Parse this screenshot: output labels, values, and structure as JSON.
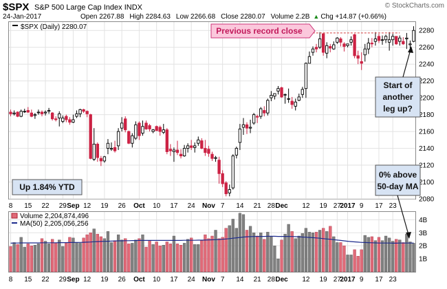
{
  "header": {
    "symbol": "$SPX",
    "name": "S&P 500 Large Cap Index",
    "exchange": "INDX",
    "watermark": "© StockCharts.com",
    "date": "24-Jan-2017",
    "open": "Open 2267.88",
    "high": "High 2284.63",
    "low": "Low 2266.68",
    "close": "Close 2280.07",
    "volume": "Volume 2.2B",
    "chg": "Chg +14.87 (+0.66%)",
    "chg_arrow": "▲"
  },
  "price_panel": {
    "legend": "$SPX (Daily) 2280.07",
    "y_ticks": [
      2080,
      2100,
      2120,
      2140,
      2160,
      2180,
      2200,
      2220,
      2240,
      2260,
      2280
    ],
    "ylim": [
      2080,
      2290
    ]
  },
  "volume_panel": {
    "legend_volume": "Volume 2,204,874,496",
    "legend_ma": "MA(50) 2,205,056,256",
    "y_ticks": [
      {
        "label": "1B",
        "value": 1
      },
      {
        "label": "2B",
        "value": 2
      },
      {
        "label": "3B",
        "value": 3
      },
      {
        "label": "4B",
        "value": 4
      }
    ],
    "ylim": [
      0,
      4.6
    ]
  },
  "x_axis": {
    "labels": [
      {
        "idx": 0,
        "text": "8",
        "bold": false
      },
      {
        "idx": 5,
        "text": "15",
        "bold": false
      },
      {
        "idx": 10,
        "text": "22",
        "bold": false
      },
      {
        "idx": 15,
        "text": "29",
        "bold": false
      },
      {
        "idx": 18,
        "text": "Sep",
        "bold": true
      },
      {
        "idx": 22,
        "text": "12",
        "bold": false
      },
      {
        "idx": 27,
        "text": "19",
        "bold": false
      },
      {
        "idx": 32,
        "text": "26",
        "bold": false
      },
      {
        "idx": 37,
        "text": "Oct",
        "bold": true
      },
      {
        "idx": 42,
        "text": "10",
        "bold": false
      },
      {
        "idx": 47,
        "text": "17",
        "bold": false
      },
      {
        "idx": 52,
        "text": "24",
        "bold": false
      },
      {
        "idx": 57,
        "text": "Nov",
        "bold": true
      },
      {
        "idx": 61,
        "text": "7",
        "bold": false
      },
      {
        "idx": 66,
        "text": "14",
        "bold": false
      },
      {
        "idx": 71,
        "text": "21",
        "bold": false
      },
      {
        "idx": 75,
        "text": "28",
        "bold": false
      },
      {
        "idx": 78,
        "text": "Dec",
        "bold": true
      },
      {
        "idx": 85,
        "text": "12",
        "bold": false
      },
      {
        "idx": 90,
        "text": "19",
        "bold": false
      },
      {
        "idx": 94,
        "text": "27",
        "bold": false
      },
      {
        "idx": 97,
        "text": "2017",
        "bold": true
      },
      {
        "idx": 101,
        "text": "9",
        "bold": false
      },
      {
        "idx": 106,
        "text": "17",
        "bold": false
      },
      {
        "idx": 110,
        "text": "23",
        "bold": false
      }
    ]
  },
  "annotations": {
    "record_label": "Previous record close",
    "record_level": 2277,
    "question_lines": [
      "Start of",
      "another",
      "leg up?"
    ],
    "ma_lines": [
      "0% above",
      "50-day MA"
    ],
    "ytd": "Up 1.84% YTD"
  },
  "colors": {
    "up": "#000000",
    "down": "#cc2244",
    "volume_up": "#808080",
    "volume_down": "#e06a78",
    "ma_line": "#1c2a8c",
    "callout_pink": "#fbc8dc",
    "callout_border": "#cc3377",
    "callout_text": "#c1185a",
    "callout_blue": "#d7e3f3",
    "grid": "#e2e2e2"
  },
  "chart_data": [
    {
      "type": "candlestick",
      "series": "$SPX (Daily)",
      "x": [
        "2016-08-08",
        "2016-08-09",
        "2016-08-10",
        "2016-08-11",
        "2016-08-12",
        "2016-08-15",
        "2016-08-16",
        "2016-08-17",
        "2016-08-18",
        "2016-08-19",
        "2016-08-22",
        "2016-08-23",
        "2016-08-24",
        "2016-08-25",
        "2016-08-26",
        "2016-08-29",
        "2016-08-30",
        "2016-08-31",
        "2016-09-01",
        "2016-09-02",
        "2016-09-06",
        "2016-09-07",
        "2016-09-08",
        "2016-09-09",
        "2016-09-12",
        "2016-09-13",
        "2016-09-14",
        "2016-09-15",
        "2016-09-16",
        "2016-09-19",
        "2016-09-20",
        "2016-09-21",
        "2016-09-22",
        "2016-09-23",
        "2016-09-26",
        "2016-09-27",
        "2016-09-28",
        "2016-09-29",
        "2016-09-30",
        "2016-10-03",
        "2016-10-04",
        "2016-10-05",
        "2016-10-06",
        "2016-10-07",
        "2016-10-10",
        "2016-10-11",
        "2016-10-12",
        "2016-10-13",
        "2016-10-14",
        "2016-10-17",
        "2016-10-18",
        "2016-10-19",
        "2016-10-20",
        "2016-10-21",
        "2016-10-24",
        "2016-10-25",
        "2016-10-26",
        "2016-10-27",
        "2016-10-28",
        "2016-10-31",
        "2016-11-01",
        "2016-11-02",
        "2016-11-03",
        "2016-11-04",
        "2016-11-07",
        "2016-11-08",
        "2016-11-09",
        "2016-11-10",
        "2016-11-11",
        "2016-11-14",
        "2016-11-15",
        "2016-11-16",
        "2016-11-17",
        "2016-11-18",
        "2016-11-21",
        "2016-11-22",
        "2016-11-23",
        "2016-11-25",
        "2016-11-28",
        "2016-11-29",
        "2016-11-30",
        "2016-12-01",
        "2016-12-02",
        "2016-12-05",
        "2016-12-06",
        "2016-12-07",
        "2016-12-08",
        "2016-12-09",
        "2016-12-12",
        "2016-12-13",
        "2016-12-14",
        "2016-12-15",
        "2016-12-16",
        "2016-12-19",
        "2016-12-20",
        "2016-12-21",
        "2016-12-22",
        "2016-12-23",
        "2016-12-27",
        "2016-12-28",
        "2016-12-29",
        "2016-12-30",
        "2017-01-03",
        "2017-01-04",
        "2017-01-05",
        "2017-01-06",
        "2017-01-09",
        "2017-01-10",
        "2017-01-11",
        "2017-01-12",
        "2017-01-13",
        "2017-01-17",
        "2017-01-18",
        "2017-01-19",
        "2017-01-20",
        "2017-01-23",
        "2017-01-24"
      ],
      "open": [
        2183,
        2181,
        2183,
        2178,
        2184,
        2185,
        2182,
        2179,
        2183,
        2183,
        2182,
        2184,
        2182,
        2175,
        2176,
        2172,
        2178,
        2174,
        2171,
        2178,
        2181,
        2186,
        2184,
        2180,
        2127,
        2145,
        2128,
        2125,
        2140,
        2139,
        2141,
        2143,
        2164,
        2175,
        2160,
        2146,
        2152,
        2170,
        2158,
        2170,
        2167,
        2160,
        2166,
        2165,
        2159,
        2162,
        2139,
        2136,
        2138,
        2133,
        2131,
        2140,
        2143,
        2141,
        2146,
        2149,
        2140,
        2139,
        2133,
        2128,
        2126,
        2110,
        2099,
        2087,
        2093,
        2132,
        2147,
        2165,
        2168,
        2164,
        2170,
        2178,
        2178,
        2185,
        2182,
        2200,
        2202,
        2208,
        2212,
        2204,
        2199,
        2196,
        2190,
        2197,
        2204,
        2211,
        2241,
        2254,
        2260,
        2260,
        2276,
        2253,
        2261,
        2258,
        2266,
        2270,
        2264,
        2262,
        2266,
        2275,
        2250,
        2243,
        2251,
        2258,
        2265,
        2267,
        2273,
        2269,
        2269,
        2266,
        2269,
        2273,
        2267,
        2267,
        2270,
        2263,
        2267
      ],
      "high": [
        2186,
        2185,
        2184,
        2186,
        2187,
        2189,
        2186,
        2182,
        2186,
        2185,
        2185,
        2188,
        2183,
        2178,
        2184,
        2179,
        2180,
        2177,
        2180,
        2185,
        2187,
        2187,
        2185,
        2181,
        2164,
        2147,
        2131,
        2131,
        2151,
        2147,
        2149,
        2164,
        2177,
        2178,
        2161,
        2158,
        2172,
        2172,
        2173,
        2173,
        2169,
        2163,
        2167,
        2167,
        2169,
        2164,
        2145,
        2141,
        2149,
        2139,
        2144,
        2146,
        2150,
        2147,
        2154,
        2152,
        2150,
        2143,
        2136,
        2131,
        2130,
        2114,
        2101,
        2097,
        2133,
        2142,
        2169,
        2176,
        2171,
        2174,
        2182,
        2180,
        2189,
        2190,
        2199,
        2208,
        2205,
        2214,
        2213,
        2205,
        2211,
        2201,
        2199,
        2205,
        2213,
        2242,
        2255,
        2261,
        2264,
        2278,
        2277,
        2266,
        2264,
        2267,
        2272,
        2272,
        2266,
        2264,
        2273,
        2276,
        2256,
        2254,
        2264,
        2271,
        2271,
        2278,
        2276,
        2274,
        2275,
        2278,
        2276,
        2273,
        2274,
        2272,
        2277,
        2268,
        2285
      ],
      "low": [
        2178,
        2179,
        2177,
        2177,
        2182,
        2182,
        2177,
        2175,
        2180,
        2178,
        2179,
        2181,
        2173,
        2172,
        2166,
        2170,
        2171,
        2168,
        2170,
        2176,
        2177,
        2182,
        2177,
        2127,
        2125,
        2124,
        2119,
        2123,
        2133,
        2137,
        2135,
        2138,
        2160,
        2159,
        2145,
        2141,
        2150,
        2150,
        2155,
        2162,
        2160,
        2158,
        2161,
        2155,
        2157,
        2133,
        2131,
        2124,
        2132,
        2128,
        2130,
        2135,
        2138,
        2135,
        2143,
        2139,
        2131,
        2130,
        2125,
        2124,
        2098,
        2094,
        2083,
        2083,
        2091,
        2128,
        2138,
        2156,
        2157,
        2158,
        2168,
        2170,
        2175,
        2178,
        2179,
        2196,
        2198,
        2204,
        2200,
        2193,
        2194,
        2187,
        2185,
        2196,
        2200,
        2200,
        2241,
        2250,
        2254,
        2258,
        2250,
        2247,
        2254,
        2257,
        2264,
        2261,
        2255,
        2260,
        2262,
        2247,
        2240,
        2233,
        2243,
        2252,
        2260,
        2262,
        2265,
        2263,
        2265,
        2256,
        2262,
        2263,
        2262,
        2263,
        2258,
        2257,
        2266
      ],
      "close": [
        2181,
        2182,
        2178,
        2184,
        2184,
        2183,
        2178,
        2180,
        2183,
        2181,
        2183,
        2185,
        2175,
        2174,
        2181,
        2176,
        2174,
        2171,
        2174,
        2181,
        2186,
        2184,
        2181,
        2128,
        2145,
        2129,
        2125,
        2130,
        2146,
        2140,
        2137,
        2160,
        2170,
        2162,
        2146,
        2155,
        2168,
        2155,
        2166,
        2163,
        2163,
        2162,
        2161,
        2160,
        2162,
        2136,
        2137,
        2138,
        2135,
        2131,
        2140,
        2143,
        2141,
        2143,
        2150,
        2140,
        2135,
        2134,
        2128,
        2129,
        2110,
        2098,
        2086,
        2091,
        2131,
        2140,
        2163,
        2168,
        2164,
        2165,
        2180,
        2177,
        2187,
        2182,
        2197,
        2203,
        2205,
        2211,
        2201,
        2204,
        2199,
        2192,
        2195,
        2201,
        2210,
        2241,
        2249,
        2258,
        2258,
        2270,
        2254,
        2262,
        2259,
        2263,
        2271,
        2266,
        2261,
        2264,
        2269,
        2250,
        2247,
        2241,
        2258,
        2265,
        2264,
        2270,
        2268,
        2269,
        2273,
        2269,
        2273,
        2264,
        2271,
        2264,
        2271,
        2264,
        2280
      ]
    },
    {
      "type": "bar",
      "series": "Volume",
      "unit": "billions of shares",
      "x": "same dates as $SPX (Daily)",
      "values": [
        1.95,
        2.25,
        2.1,
        2.65,
        1.9,
        2.15,
        2.0,
        2.05,
        2.15,
        2.55,
        2.35,
        2.15,
        2.5,
        2.2,
        2.45,
        1.95,
        2.25,
        2.65,
        2.6,
        2.25,
        2.2,
        2.6,
        2.85,
        3.0,
        3.3,
        2.9,
        2.7,
        2.55,
        3.1,
        2.25,
        2.4,
        2.85,
        2.45,
        2.55,
        2.15,
        2.2,
        2.45,
        2.55,
        2.85,
        1.9,
        2.4,
        2.1,
        2.3,
        2.0,
        2.05,
        2.3,
        2.15,
        2.75,
        2.15,
        2.05,
        2.2,
        2.5,
        2.6,
        2.1,
        2.1,
        2.4,
        2.85,
        2.55,
        2.75,
        3.2,
        2.55,
        2.65,
        3.35,
        3.55,
        4.05,
        3.35,
        4.5,
        4.4,
        3.2,
        3.5,
        3.0,
        2.75,
        3.0,
        2.5,
        3.05,
        2.7,
        2.0,
        1.0,
        2.45,
        2.9,
        3.65,
        3.1,
        2.55,
        2.75,
        2.95,
        3.35,
        3.05,
        3.0,
        3.05,
        3.2,
        3.35,
        3.1,
        3.5,
        2.7,
        2.25,
        2.25,
        2.0,
        1.3,
        1.3,
        1.7,
        1.2,
        1.7,
        2.8,
        2.65,
        2.7,
        2.4,
        2.65,
        2.4,
        2.75,
        2.6,
        2.35,
        2.5,
        2.45,
        2.25,
        2.9,
        2.3,
        2.2
      ],
      "ma50": [
        2.2,
        2.21,
        2.21,
        2.22,
        2.22,
        2.22,
        2.22,
        2.22,
        2.22,
        2.23,
        2.23,
        2.23,
        2.23,
        2.23,
        2.24,
        2.24,
        2.24,
        2.25,
        2.25,
        2.26,
        2.26,
        2.27,
        2.28,
        2.29,
        2.31,
        2.32,
        2.33,
        2.34,
        2.35,
        2.36,
        2.37,
        2.38,
        2.38,
        2.39,
        2.39,
        2.4,
        2.4,
        2.41,
        2.41,
        2.41,
        2.41,
        2.41,
        2.41,
        2.41,
        2.41,
        2.41,
        2.41,
        2.41,
        2.41,
        2.41,
        2.42,
        2.42,
        2.42,
        2.42,
        2.43,
        2.43,
        2.44,
        2.45,
        2.46,
        2.47,
        2.48,
        2.5,
        2.52,
        2.55,
        2.58,
        2.61,
        2.64,
        2.67,
        2.69,
        2.7,
        2.71,
        2.72,
        2.72,
        2.72,
        2.73,
        2.73,
        2.73,
        2.72,
        2.72,
        2.72,
        2.72,
        2.71,
        2.7,
        2.69,
        2.67,
        2.66,
        2.64,
        2.62,
        2.6,
        2.58,
        2.55,
        2.52,
        2.5,
        2.47,
        2.44,
        2.41,
        2.38,
        2.35,
        2.32,
        2.3,
        2.28,
        2.26,
        2.25,
        2.24,
        2.23,
        2.22,
        2.21,
        2.21,
        2.21,
        2.21,
        2.2,
        2.2,
        2.21,
        2.21,
        2.21,
        2.21,
        2.21
      ],
      "legend": [
        "Volume 2,204,874,496",
        "MA(50) 2,205,056,256"
      ]
    }
  ]
}
